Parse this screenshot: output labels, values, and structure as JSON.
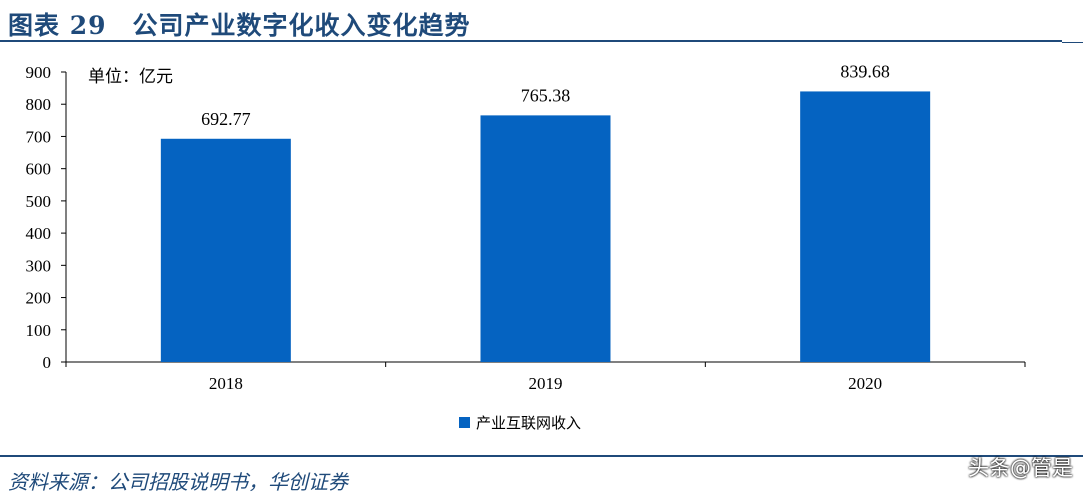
{
  "figure": {
    "title": "图表 29　公司产业数字化收入变化趋势",
    "source": "资料来源：公司招股说明书，华创证券",
    "watermark": "头条@管是"
  },
  "colors": {
    "bar": "#0563c1",
    "accent": "#1f4a7a"
  },
  "chart_data": {
    "type": "bar",
    "unit_label": "单位：亿元",
    "categories": [
      "2018",
      "2019",
      "2020"
    ],
    "series": [
      {
        "name": "产业互联网收入",
        "values": [
          692.77,
          765.38,
          839.68
        ]
      }
    ],
    "data_labels": [
      "692.77",
      "765.38",
      "839.68"
    ],
    "ylim": [
      0,
      900
    ],
    "yticks": [
      0,
      100,
      200,
      300,
      400,
      500,
      600,
      700,
      800,
      900
    ],
    "legend": "bottom-center",
    "grid": false
  }
}
